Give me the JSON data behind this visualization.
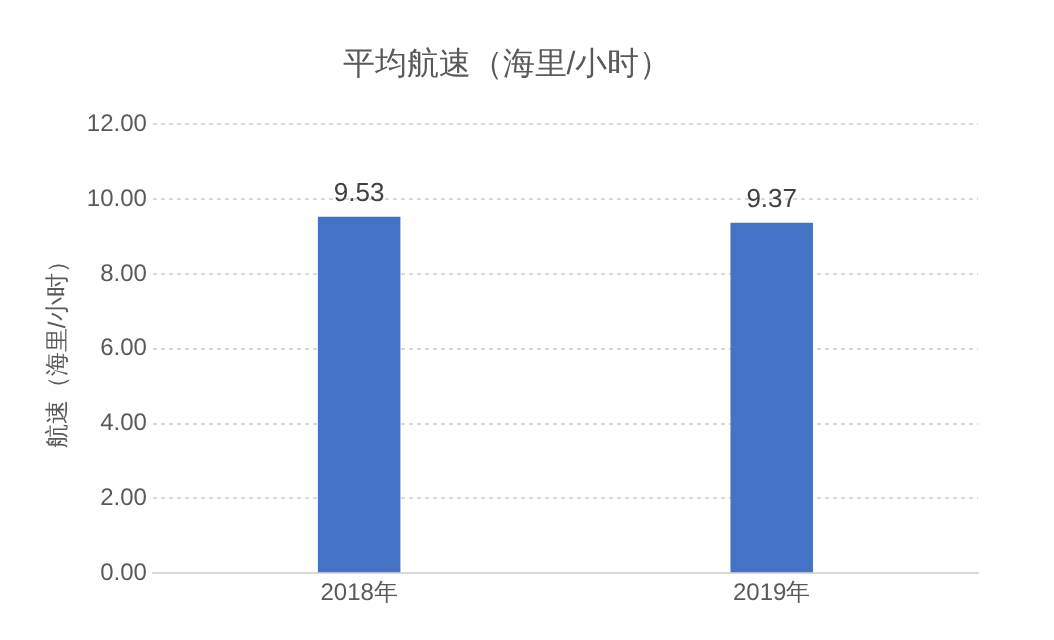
{
  "chart_data": {
    "type": "bar",
    "title": "平均航速（海里/小时）",
    "ylabel": "航速（海里/小时）",
    "categories": [
      "2018年",
      "2019年"
    ],
    "values": [
      9.53,
      9.37
    ],
    "color": "#4472c4",
    "ylim": [
      0,
      12
    ],
    "yticks": [
      {
        "value": 0,
        "label": "0.00"
      },
      {
        "value": 2,
        "label": "2.00"
      },
      {
        "value": 4,
        "label": "4.00"
      },
      {
        "value": 6,
        "label": "6.00"
      },
      {
        "value": 8,
        "label": "8.00"
      },
      {
        "value": 10,
        "label": "10.00"
      },
      {
        "value": 12,
        "label": "12.00"
      }
    ],
    "grid": "y",
    "data_labels": true,
    "legend": false
  }
}
